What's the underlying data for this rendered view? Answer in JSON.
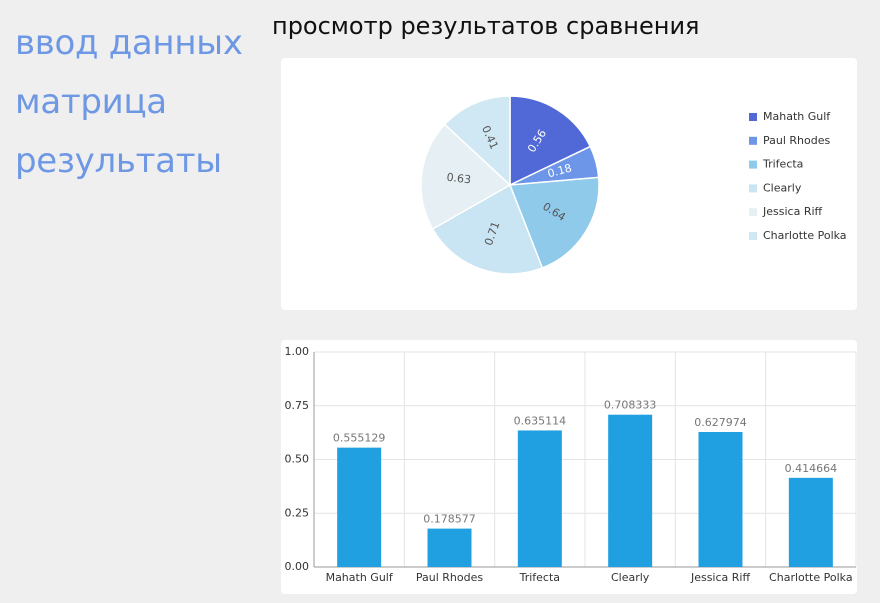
{
  "nav": {
    "items": [
      {
        "label": "ввод данных"
      },
      {
        "label": "матрица"
      },
      {
        "label": "результаты"
      }
    ]
  },
  "page_title": "просмотр результатов сравнения",
  "colors": {
    "nav_link": "#6f98e4",
    "bar": "#20a0e0",
    "pie": [
      "#5169d6",
      "#6d96e8",
      "#8fcaea",
      "#c9e4f2",
      "#e6f0f4",
      "#cfe8f4"
    ]
  },
  "chart_data": [
    {
      "type": "pie",
      "categories": [
        "Mahath Gulf",
        "Paul Rhodes",
        "Trifecta",
        "Clearly",
        "Jessica Riff",
        "Charlotte Polka"
      ],
      "values": [
        0.56,
        0.18,
        0.64,
        0.71,
        0.63,
        0.41
      ],
      "slice_labels": [
        "0.56",
        "0.18",
        "0.64",
        "0.71",
        "0.63",
        "0.41"
      ],
      "legend": "right"
    },
    {
      "type": "bar",
      "categories": [
        "Mahath Gulf",
        "Paul Rhodes",
        "Trifecta",
        "Clearly",
        "Jessica Riff",
        "Charlotte Polka"
      ],
      "values": [
        0.555129,
        0.178577,
        0.635114,
        0.708333,
        0.627974,
        0.414664
      ],
      "data_labels": [
        "0.555129",
        "0.178577",
        "0.635114",
        "0.708333",
        "0.627974",
        "0.414664"
      ],
      "ylim": [
        0,
        1.0
      ],
      "yticks": [
        "0.00",
        "0.25",
        "0.50",
        "0.75",
        "1.00"
      ],
      "grid": true
    }
  ]
}
